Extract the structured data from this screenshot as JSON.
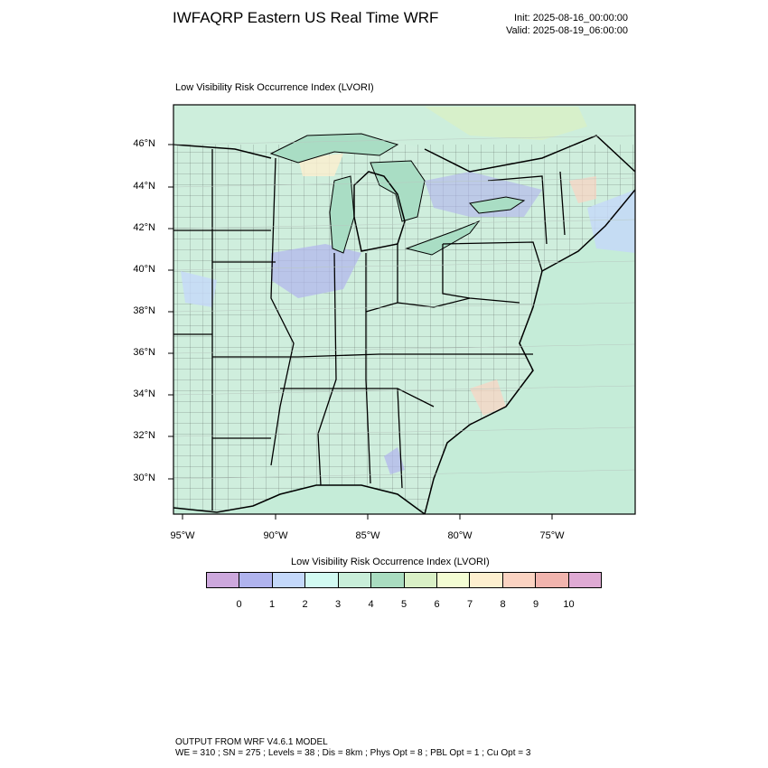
{
  "header": {
    "title": "IWFAQRP Eastern US Real Time WRF",
    "init": "Init: 2025-08-16_00:00:00",
    "valid": "Valid: 2025-08-19_06:00:00"
  },
  "map": {
    "title": "Low Visibility Risk Occurrence Index   (LVORI)",
    "lat_labels": [
      "46°N",
      "44°N",
      "42°N",
      "40°N",
      "38°N",
      "36°N",
      "34°N",
      "32°N",
      "30°N"
    ],
    "lon_labels": [
      "95°W",
      "90°W",
      "85°W",
      "80°W",
      "75°W"
    ],
    "land_color": "#cfeedd",
    "water_color": "#c5ecd8",
    "lake_color": "#a9ddc4"
  },
  "colorbar": {
    "title": "Low Visibility Risk Occurrence Index  (LVORI)",
    "labels": [
      "0",
      "1",
      "2",
      "3",
      "4",
      "5",
      "6",
      "7",
      "8",
      "9",
      "10"
    ],
    "colors": [
      "#cda8dd",
      "#b0b3ee",
      "#c4d8fa",
      "#d2faf2",
      "#c8eed9",
      "#a9dcc0",
      "#d9f0c6",
      "#f3fcd3",
      "#fdefcf",
      "#fbd3c2",
      "#f1b4ae",
      "#dfaad4"
    ]
  },
  "footer": {
    "line1": "OUTPUT FROM WRF V4.6.1 MODEL",
    "line2": "WE = 310 ; SN = 275 ; Levels = 38 ; Dis = 8km ; Phys Opt = 8 ; PBL Opt = 1 ; Cu Opt = 3"
  }
}
